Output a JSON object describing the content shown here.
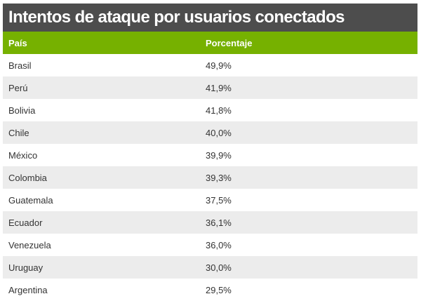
{
  "title": "Intentos de ataque por usuarios conectados",
  "columns": [
    "País",
    "Porcentaje"
  ],
  "rows": [
    {
      "country": "Brasil",
      "percent": "49,9%"
    },
    {
      "country": "Perú",
      "percent": "41,9%"
    },
    {
      "country": "Bolivia",
      "percent": "41,8%"
    },
    {
      "country": "Chile",
      "percent": "40,0%"
    },
    {
      "country": "México",
      "percent": "39,9%"
    },
    {
      "country": "Colombia",
      "percent": "39,3%"
    },
    {
      "country": "Guatemala",
      "percent": "37,5%"
    },
    {
      "country": "Ecuador",
      "percent": "36,1%"
    },
    {
      "country": "Venezuela",
      "percent": "36,0%"
    },
    {
      "country": "Uruguay",
      "percent": "30,0%"
    },
    {
      "country": "Argentina",
      "percent": "29,5%"
    }
  ],
  "colors": {
    "title_bg": "#4d4d4d",
    "header_bg": "#76b100",
    "alt_row_bg": "#ececec",
    "text": "#333333"
  }
}
